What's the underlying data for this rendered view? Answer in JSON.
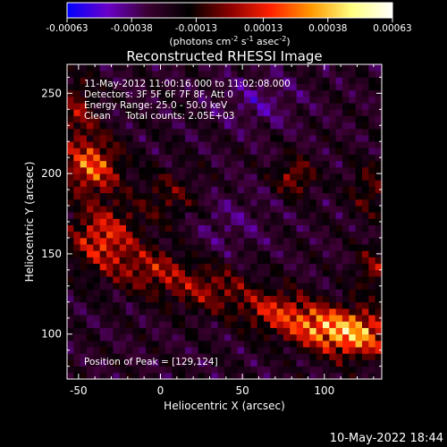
{
  "colorbar": {
    "ticks": [
      "-0.00063",
      "-0.00038",
      "-0.00013",
      "0.00013",
      "0.00038",
      "0.00063"
    ],
    "units_main": "(photons cm",
    "units_exp1": "-2",
    "units_mid": " s",
    "units_exp2": "-1",
    "units_mid2": " asec",
    "units_exp3": "-2",
    "units_end": ")",
    "stops": [
      "#0000ff",
      "#6a00c8",
      "#3a0030",
      "#000000",
      "#8a0000",
      "#ff2000",
      "#ff9800",
      "#ffff80",
      "#ffffff"
    ]
  },
  "chart_data": {
    "type": "heatmap",
    "title": "Reconstructed RHESSI Image",
    "xlabel": "Heliocentric X (arcsec)",
    "ylabel": "Heliocentric Y (arcsec)",
    "xlim": [
      -57,
      135
    ],
    "ylim": [
      72,
      268
    ],
    "xticks": [
      -50,
      0,
      50,
      100
    ],
    "xtick_labels": [
      "-50",
      "0",
      "50",
      "100"
    ],
    "yticks": [
      100,
      150,
      200,
      250
    ],
    "ytick_labels": [
      "100",
      "150",
      "200",
      "250"
    ],
    "info_lines": [
      "11-May-2012 11:00:16.000 to 11:02:08.000",
      "Detectors: 3F 5F 6F 7F 8F, Att 0",
      "Energy Range: 25.0 - 50.0 keV",
      "Clean     Total counts: 2.05E+03"
    ],
    "peak_label": "Position of Peak = [129,124]",
    "peak": [
      129,
      124
    ],
    "value_range": [
      -0.00063,
      0.00063
    ],
    "features": [
      {
        "x": 120,
        "y": 100,
        "sx": 16,
        "sy": 10,
        "amp": 0.00068
      },
      {
        "x": 95,
        "y": 105,
        "sx": 15,
        "sy": 9,
        "amp": 0.00048
      },
      {
        "x": 70,
        "y": 115,
        "sx": 15,
        "sy": 9,
        "amp": 0.0004
      },
      {
        "x": 30,
        "y": 128,
        "sx": 18,
        "sy": 10,
        "amp": 0.00032
      },
      {
        "x": -5,
        "y": 140,
        "sx": 16,
        "sy": 10,
        "amp": 0.00034
      },
      {
        "x": -35,
        "y": 160,
        "sx": 14,
        "sy": 14,
        "amp": 0.0005
      },
      {
        "x": -42,
        "y": 205,
        "sx": 12,
        "sy": 12,
        "amp": 0.00058
      },
      {
        "x": -50,
        "y": 240,
        "sx": 8,
        "sy": 14,
        "amp": 0.0003
      },
      {
        "x": 5,
        "y": 185,
        "sx": 14,
        "sy": 12,
        "amp": 0.00022
      },
      {
        "x": 82,
        "y": 198,
        "sx": 8,
        "sy": 8,
        "amp": 0.00035
      },
      {
        "x": 128,
        "y": 190,
        "sx": 9,
        "sy": 12,
        "amp": 0.00024
      },
      {
        "x": 130,
        "y": 140,
        "sx": 8,
        "sy": 10,
        "amp": 0.0003
      },
      {
        "x": 60,
        "y": 245,
        "sx": 18,
        "sy": 12,
        "amp": -0.00016
      },
      {
        "x": 40,
        "y": 170,
        "sx": 18,
        "sy": 14,
        "amp": -0.00012
      }
    ]
  },
  "timestamp": "10-May-2022 18:44"
}
